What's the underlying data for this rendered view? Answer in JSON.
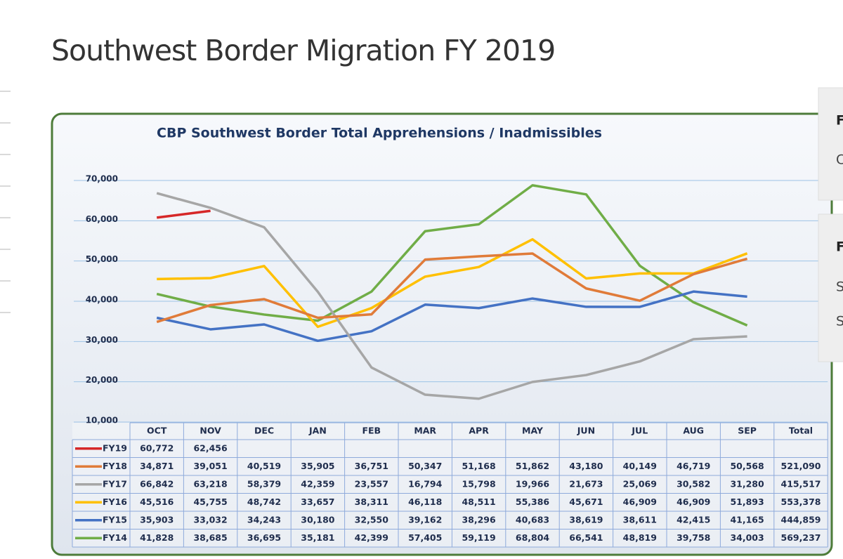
{
  "page_title": "Southwest Border Migration FY 2019",
  "sidebar": [
    "F",
    "C",
    "F",
    "S",
    "S"
  ],
  "chart_data": {
    "type": "line",
    "title": "CBP Southwest Border Total Apprehensions / Inadmissibles",
    "categories": [
      "OCT",
      "NOV",
      "DEC",
      "JAN",
      "FEB",
      "MAR",
      "APR",
      "MAY",
      "JUN",
      "JUL",
      "AUG",
      "SEP"
    ],
    "total_header": "Total",
    "ylim": [
      10000,
      70000
    ],
    "yticks": [
      {
        "value": 10000,
        "label": "10,000"
      },
      {
        "value": 20000,
        "label": "20,000"
      },
      {
        "value": 30000,
        "label": "30,000"
      },
      {
        "value": 40000,
        "label": "40,000"
      },
      {
        "value": 50000,
        "label": "50,000"
      },
      {
        "value": 60000,
        "label": "60,000"
      },
      {
        "value": 70000,
        "label": "70,000"
      }
    ],
    "grid": true,
    "series": [
      {
        "name": "FY19",
        "color": "#d62728",
        "values": [
          60772,
          62456,
          null,
          null,
          null,
          null,
          null,
          null,
          null,
          null,
          null,
          null
        ],
        "value_labels": [
          "60,772",
          "62,456",
          null,
          null,
          null,
          null,
          null,
          null,
          null,
          null,
          null,
          null
        ]
      },
      {
        "name": "FY18",
        "color": "#e07b39",
        "values": [
          34871,
          39051,
          40519,
          35905,
          36751,
          50347,
          51168,
          51862,
          43180,
          40149,
          46719,
          50568
        ],
        "value_labels": [
          "34,871",
          "39,051",
          "40,519",
          "35,905",
          "36,751",
          "50,347",
          "51,168",
          "51,862",
          "43,180",
          "40,149",
          "46,719",
          "50,568"
        ],
        "total": {
          "value": 521090,
          "label": "521,090"
        }
      },
      {
        "name": "FY17",
        "color": "#a6a6a6",
        "values": [
          66842,
          63218,
          58379,
          42359,
          23557,
          16794,
          15798,
          19966,
          21673,
          25069,
          30582,
          31280
        ],
        "value_labels": [
          "66,842",
          "63,218",
          "58,379",
          "42,359",
          "23,557",
          "16,794",
          "15,798",
          "19,966",
          "21,673",
          "25,069",
          "30,582",
          "31,280"
        ],
        "total": {
          "value": 415517,
          "label": "415,517"
        }
      },
      {
        "name": "FY16",
        "color": "#ffc000",
        "values": [
          45516,
          45755,
          48742,
          33657,
          38311,
          46118,
          48511,
          55386,
          45671,
          46909,
          46909,
          51893
        ],
        "value_labels": [
          "45,516",
          "45,755",
          "48,742",
          "33,657",
          "38,311",
          "46,118",
          "48,511",
          "55,386",
          "45,671",
          "46,909",
          "46,909",
          "51,893"
        ],
        "total": {
          "value": 553378,
          "label": "553,378"
        }
      },
      {
        "name": "FY15",
        "color": "#4472c4",
        "values": [
          35903,
          33032,
          34243,
          30180,
          32550,
          39162,
          38296,
          40683,
          38619,
          38611,
          42415,
          41165
        ],
        "value_labels": [
          "35,903",
          "33,032",
          "34,243",
          "30,180",
          "32,550",
          "39,162",
          "38,296",
          "40,683",
          "38,619",
          "38,611",
          "42,415",
          "41,165"
        ],
        "total": {
          "value": 444859,
          "label": "444,859"
        }
      },
      {
        "name": "FY14",
        "color": "#70ad47",
        "values": [
          41828,
          38685,
          36695,
          35181,
          42399,
          57405,
          59119,
          68804,
          66541,
          48819,
          39758,
          34003
        ],
        "value_labels": [
          "41,828",
          "38,685",
          "36,695",
          "35,181",
          "42,399",
          "57,405",
          "59,119",
          "68,804",
          "66,541",
          "48,819",
          "39,758",
          "34,003"
        ],
        "total": {
          "value": 569237,
          "label": "569,237"
        }
      }
    ]
  }
}
